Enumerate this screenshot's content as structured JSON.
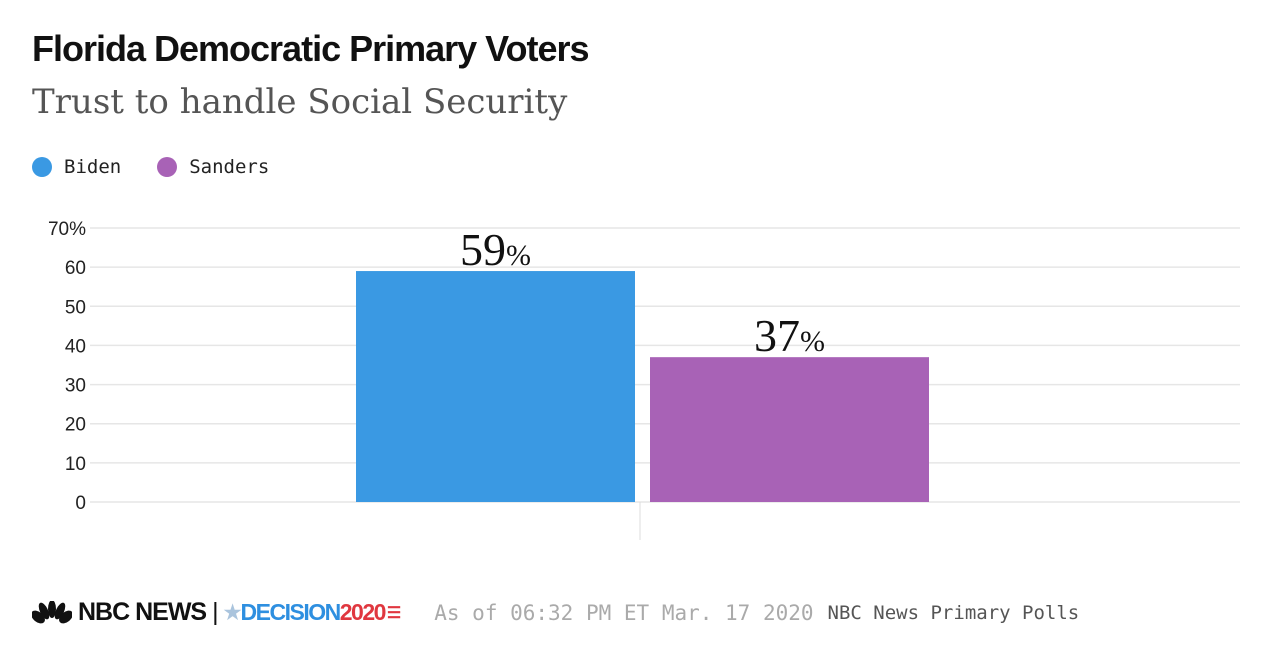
{
  "header": {
    "title": "Florida Democratic Primary Voters",
    "subtitle": "Trust to handle Social Security"
  },
  "colors": {
    "Biden": "#3a99e3",
    "Sanders": "#a862b6",
    "grid": "#e6e6e6"
  },
  "chart_data": {
    "type": "bar",
    "categories": [
      ""
    ],
    "series": [
      {
        "name": "Biden",
        "values": [
          59
        ]
      },
      {
        "name": "Sanders",
        "values": [
          37
        ]
      }
    ],
    "data_labels": [
      "59%",
      "37%"
    ],
    "yticks": [
      "0",
      "10",
      "20",
      "30",
      "40",
      "50",
      "60",
      "70%"
    ],
    "ylim": [
      0,
      70
    ],
    "grid": true,
    "legend": "top-left"
  },
  "footer": {
    "logo_nbc": "NBC NEWS",
    "logo_decision": "DECISION",
    "logo_year": "2020",
    "as_of": "As of 06:32 PM ET Mar. 17 2020",
    "source": "NBC News Primary Polls"
  }
}
